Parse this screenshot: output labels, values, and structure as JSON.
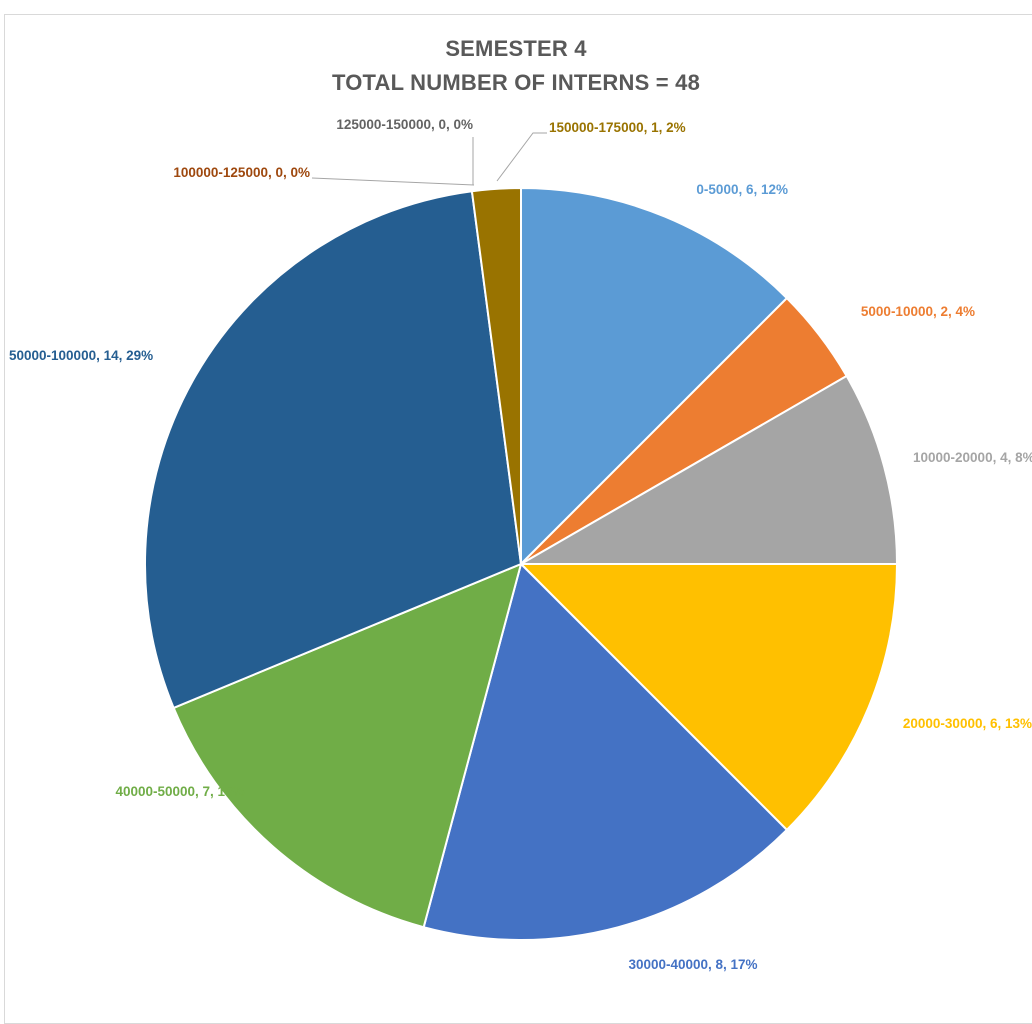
{
  "chart_data": {
    "type": "pie",
    "title": "SEMESTER 4",
    "subtitle": "TOTAL NUMBER OF INTERNS = 48",
    "slices": [
      {
        "category": "0-5000",
        "value": 6,
        "percent": "12%",
        "label": "0-5000, 6, 12%",
        "color": "#5B9BD5"
      },
      {
        "category": "5000-10000",
        "value": 2,
        "percent": "4%",
        "label": "5000-10000, 2, 4%",
        "color": "#ED7D31"
      },
      {
        "category": "10000-20000",
        "value": 4,
        "percent": "8%",
        "label": "10000-20000, 4, 8%",
        "color": "#A5A5A5"
      },
      {
        "category": "20000-30000",
        "value": 6,
        "percent": "13%",
        "label": "20000-30000, 6, 13%",
        "color": "#FFC000"
      },
      {
        "category": "30000-40000",
        "value": 8,
        "percent": "17%",
        "label": "30000-40000, 8, 17%",
        "color": "#4472C4"
      },
      {
        "category": "40000-50000",
        "value": 7,
        "percent": "15%",
        "label": "40000-50000, 7, 15%",
        "color": "#70AD47"
      },
      {
        "category": "50000-100000",
        "value": 14,
        "percent": "29%",
        "label": "50000-100000, 14, 29%",
        "color": "#255E91"
      },
      {
        "category": "100000-125000",
        "value": 0,
        "percent": "0%",
        "label": "100000-125000, 0, 0%",
        "color": "#9E480E"
      },
      {
        "category": "125000-150000",
        "value": 0,
        "percent": "0%",
        "label": "125000-150000, 0, 0%",
        "color": "#636363"
      },
      {
        "category": "150000-175000",
        "value": 1,
        "percent": "2%",
        "label": "150000-175000, 1, 2%",
        "color": "#997300"
      }
    ],
    "legend": "none",
    "data_labels": "outside with leader lines"
  }
}
